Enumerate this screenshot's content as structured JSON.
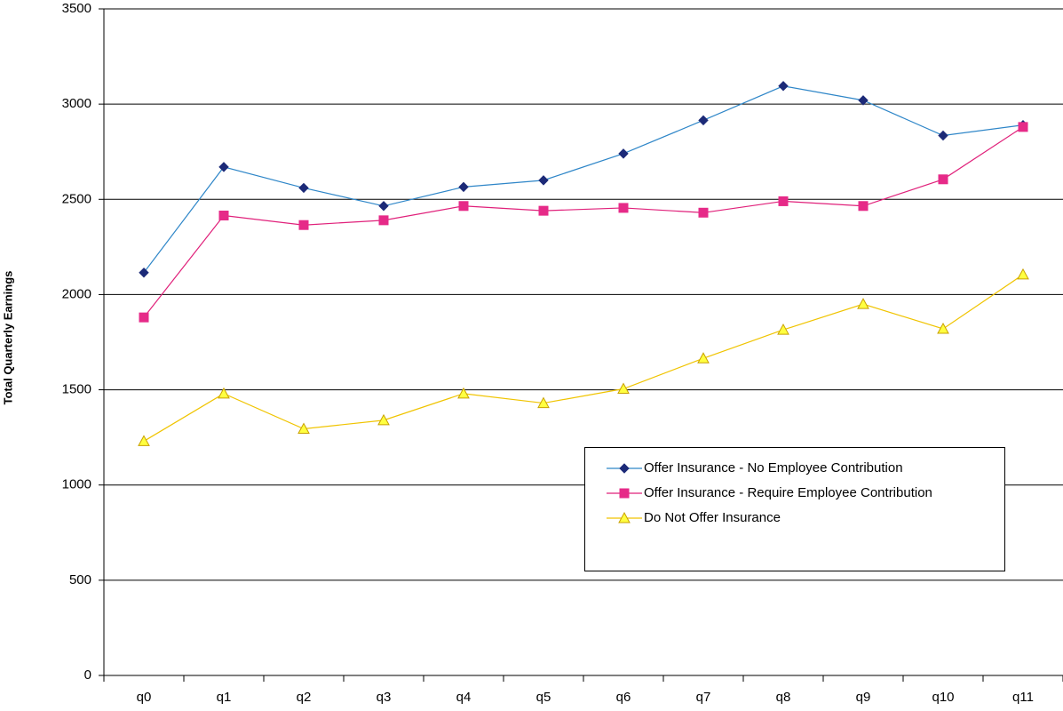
{
  "chart_data": {
    "type": "line",
    "y_label": "Total Quarterly Earnings",
    "categories": [
      "q0",
      "q1",
      "q2",
      "q3",
      "q4",
      "q5",
      "q6",
      "q7",
      "q8",
      "q9",
      "q10",
      "q11"
    ],
    "series": [
      {
        "name": "Offer Insurance - No Employee Contribution",
        "color": "#2e86c8",
        "marker_color": "#1c2a78",
        "marker": "diamond",
        "values": [
          2115,
          2670,
          2560,
          2465,
          2565,
          2600,
          2740,
          2915,
          3095,
          3020,
          2835,
          2890
        ]
      },
      {
        "name": "Offer Insurance - Require Employee Contribution",
        "color": "#e0207a",
        "marker_color": "#e62a88",
        "marker": "square",
        "values": [
          1880,
          2415,
          2365,
          2390,
          2465,
          2440,
          2455,
          2430,
          2490,
          2465,
          2605,
          2880
        ]
      },
      {
        "name": "Do Not Offer Insurance",
        "color": "#f0c400",
        "marker_color": "#ffff40",
        "marker": "triangle",
        "values": [
          1230,
          1480,
          1295,
          1340,
          1480,
          1430,
          1505,
          1665,
          1815,
          1950,
          1820,
          2105
        ]
      }
    ],
    "ylim": [
      0,
      3500
    ],
    "yticks": [
      0,
      500,
      1000,
      1500,
      2000,
      2500,
      3000,
      3500
    ],
    "grid": true
  }
}
